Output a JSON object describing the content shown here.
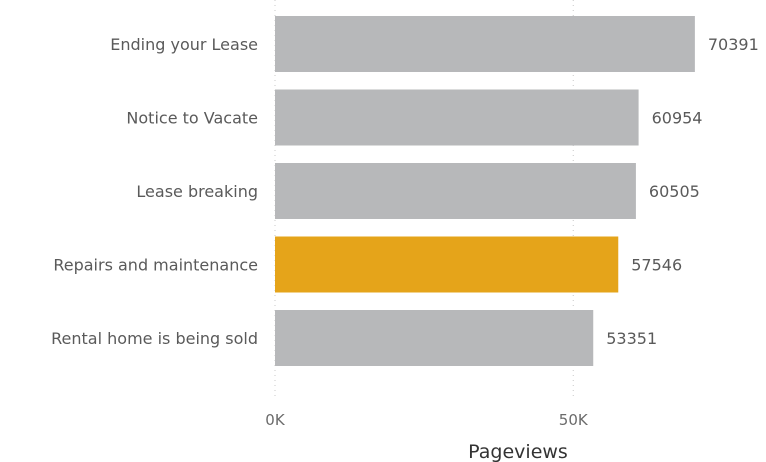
{
  "chart_data": {
    "type": "bar",
    "orientation": "horizontal",
    "categories": [
      "Ending your Lease",
      "Notice to Vacate",
      "Lease breaking",
      "Repairs and maintenance",
      "Rental home is being sold"
    ],
    "values": [
      70391,
      60954,
      60505,
      57546,
      53351
    ],
    "value_labels": [
      "70391",
      "60954",
      "60505",
      "57546",
      "53351"
    ],
    "highlighted_index": 3,
    "xlabel": "Pageviews",
    "ylabel": "",
    "xlim": [
      0,
      80000
    ],
    "x_ticks": [
      0,
      50000
    ],
    "x_tick_labels": [
      "0K",
      "50K"
    ],
    "grid": "vertical-dotted",
    "colors": {
      "bar": "#b7b8ba",
      "highlight": "#e5a41a"
    }
  }
}
